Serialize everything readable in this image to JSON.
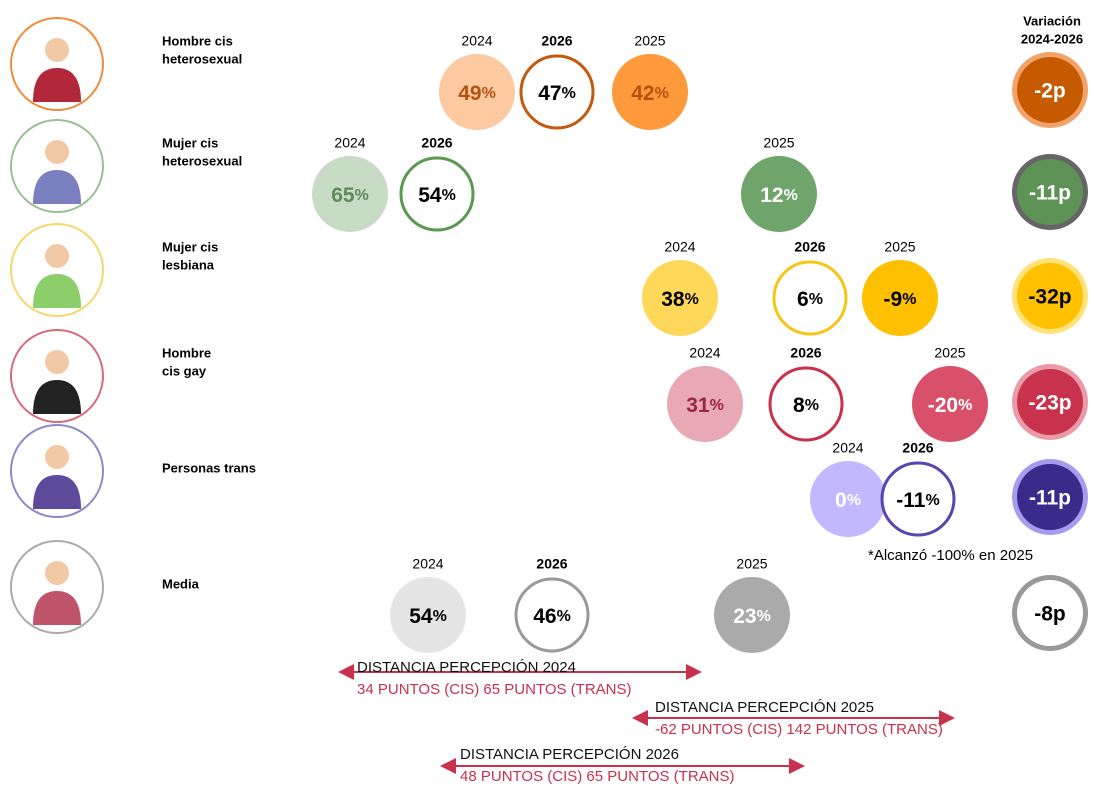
{
  "header": {
    "variation_title": [
      "Variación",
      "2024-2026"
    ]
  },
  "rows": [
    {
      "label": [
        "Hombre cis",
        "heterosexual"
      ],
      "points": [
        {
          "year": "2024",
          "value": "49%"
        },
        {
          "year": "2026",
          "value": "47%"
        },
        {
          "year": "2025",
          "value": "42%"
        }
      ],
      "variation": "-2p"
    },
    {
      "label": [
        "Mujer cis",
        "heterosexual"
      ],
      "points": [
        {
          "year": "2024",
          "value": "65%"
        },
        {
          "year": "2026",
          "value": "54%"
        },
        {
          "year": "2025",
          "value": "12%"
        }
      ],
      "variation": "-11p"
    },
    {
      "label": [
        "Mujer cis",
        "lesbiana"
      ],
      "points": [
        {
          "year": "2024",
          "value": "38%"
        },
        {
          "year": "2026",
          "value": "6%"
        },
        {
          "year": "2025",
          "value": "-9%"
        }
      ],
      "variation": "-32p"
    },
    {
      "label": [
        "Hombre",
        "cis gay"
      ],
      "points": [
        {
          "year": "2024",
          "value": "31%"
        },
        {
          "year": "2026",
          "value": "8%"
        },
        {
          "year": "2025",
          "value": "-20%"
        }
      ],
      "variation": "-23p"
    },
    {
      "label": [
        "Personas trans"
      ],
      "points": [
        {
          "year": "2024",
          "value": "0%"
        },
        {
          "year": "2026",
          "value": "-11%"
        }
      ],
      "variation": "-11p"
    },
    {
      "label": [
        "Media"
      ],
      "points": [
        {
          "year": "2024",
          "value": "54%"
        },
        {
          "year": "2026",
          "value": "46%"
        },
        {
          "year": "2025",
          "value": "23%"
        }
      ],
      "variation": "-8p"
    }
  ],
  "note": "*Alcanzó -100% en 2025",
  "distances": [
    {
      "title": "DISTANCIA  PERCEPCIÓN 2024",
      "detail": "34 PUNTOS (CIS) 65 PUNTOS (TRANS)"
    },
    {
      "title": "DISTANCIA PERCEPCIÓN 2025",
      "detail": "-62 PUNTOS  (CIS) 142 PUNTOS (TRANS)"
    },
    {
      "title": "DISTANCIA PERCEPCIÓN 2026",
      "detail": "48 PUNTOS (CIS)  65 PUNTOS (TRANS)"
    }
  ]
}
